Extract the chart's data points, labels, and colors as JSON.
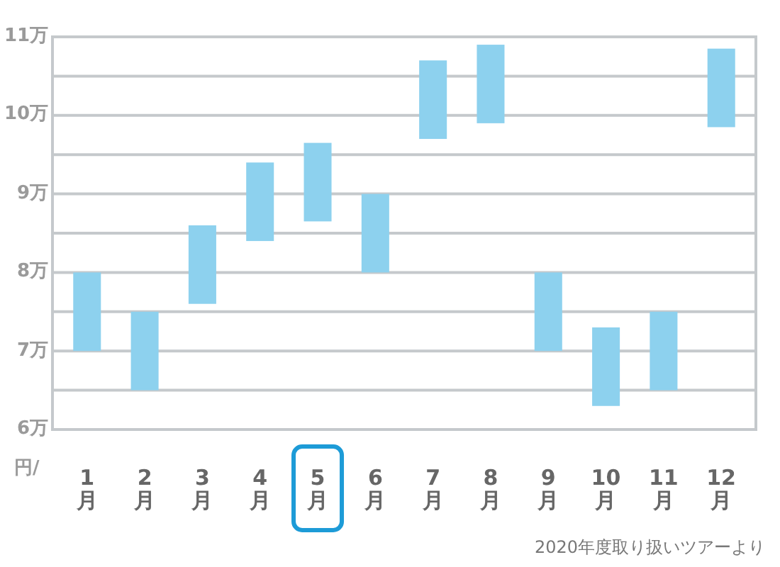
{
  "chart_data": {
    "type": "bar",
    "ylabel": "円/",
    "categories": [
      "1月",
      "2月",
      "3月",
      "4月",
      "5月",
      "6月",
      "7月",
      "8月",
      "9月",
      "10月",
      "11月",
      "12月"
    ],
    "base": [
      7,
      6.5,
      7.6,
      8.4,
      8.65,
      8,
      9.7,
      9.9,
      7,
      6.3,
      6.5,
      9.85
    ],
    "values": [
      1,
      1,
      1,
      1,
      1,
      1,
      1,
      1,
      1,
      1,
      1,
      1
    ],
    "color": "#8dd1ee",
    "ylim": [
      6,
      11
    ],
    "yticks": [
      {
        "value": 6,
        "label": "6万"
      },
      {
        "value": 6.5,
        "label": null
      },
      {
        "value": 7,
        "label": "7万"
      },
      {
        "value": 7.5,
        "label": null
      },
      {
        "value": 8,
        "label": "8万"
      },
      {
        "value": 8.5,
        "label": null
      },
      {
        "value": 9,
        "label": "9万"
      },
      {
        "value": 9.5,
        "label": null
      },
      {
        "value": 10,
        "label": "10万"
      },
      {
        "value": 10.5,
        "label": null
      },
      {
        "value": 11,
        "label": "11万"
      }
    ],
    "grid": "y",
    "annotations": [
      "2020年度取り扱いツアーより"
    ]
  }
}
